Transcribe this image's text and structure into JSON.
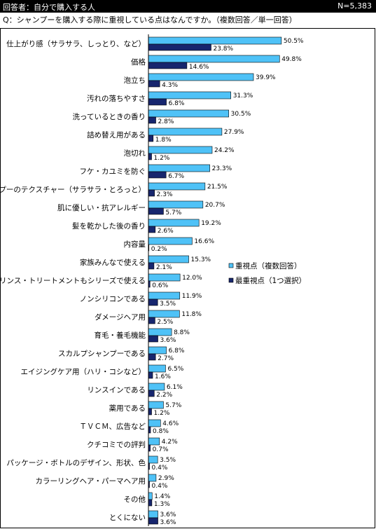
{
  "header": {
    "respondents": "回答者：自分で購入する人",
    "sample_size": "N=5,383"
  },
  "question": "Q：シャンプーを購入する際に重視している点はなんですか。（複数回答／単一回答）",
  "colors": {
    "series_a": "#4fc2f7",
    "series_b": "#17266e",
    "header_bg": "#000000"
  },
  "chart_data": {
    "type": "bar",
    "orientation": "horizontal",
    "categories": [
      "仕上がり感（サラサラ、しっとり、など）",
      "価格",
      "泡立ち",
      "汚れの落ちやすさ",
      "洗っているときの香り",
      "詰め替え用がある",
      "泡切れ",
      "フケ・カユミを防ぐ",
      "シャンプーのテクスチャー（サラサラ・とろっと）",
      "肌に優しい・抗アレルギー",
      "髪を乾かした後の香り",
      "内容量",
      "家族みんなで使える",
      "リンス・トリートメントもシリーズで使える",
      "ノンシリコンである",
      "ダメージヘア用",
      "育毛・養毛機能",
      "スカルプシャンプーである",
      "エイジングケア用（ハリ・コシなど）",
      "リンスインである",
      "薬用である",
      "ＴＶＣＭ、広告など",
      "クチコミでの評判",
      "パッケージ・ボトルのデザイン、形状、色",
      "カラーリングヘア・パーマヘア用",
      "その他",
      "とくにない"
    ],
    "series": [
      {
        "name": "重視点（複数回答）",
        "values": [
          50.5,
          49.8,
          39.9,
          31.3,
          30.5,
          27.9,
          24.2,
          23.3,
          21.5,
          20.7,
          19.2,
          16.6,
          15.3,
          12.0,
          11.9,
          11.8,
          8.8,
          6.8,
          6.5,
          6.1,
          5.7,
          4.6,
          4.2,
          3.5,
          2.9,
          1.4,
          3.6
        ],
        "labels": [
          "50.5%",
          "49.8%",
          "39.9%",
          "31.3%",
          "30.5%",
          "27.9%",
          "24.2%",
          "23.3%",
          "21.5%",
          "20.7%",
          "19.2%",
          "16.6%",
          "15.3%",
          "12.0%",
          "11.9%",
          "11.8%",
          "8.8%",
          "6.8%",
          "6.5%",
          "6.1%",
          "5.7%",
          "4.6%",
          "4.2%",
          "3.5%",
          "2.9%",
          "1.4%",
          "3.6%"
        ]
      },
      {
        "name": "最重視点（1つ選択）",
        "values": [
          23.8,
          14.6,
          4.3,
          6.8,
          2.8,
          1.8,
          1.2,
          6.7,
          2.3,
          5.7,
          2.6,
          0.2,
          2.1,
          0.6,
          3.5,
          2.5,
          3.6,
          2.7,
          1.6,
          2.2,
          1.2,
          0.8,
          0.7,
          0.4,
          0.4,
          1.3,
          3.6
        ],
        "labels": [
          "23.8%",
          "14.6%",
          "4.3%",
          "6.8%",
          "2.8%",
          "1.8%",
          "1.2%",
          "6.7%",
          "2.3%",
          "5.7%",
          "2.6%",
          "0.2%",
          "2.1%",
          "0.6%",
          "3.5%",
          "2.5%",
          "3.6%",
          "2.7%",
          "1.6%",
          "2.2%",
          "1.2%",
          "0.8%",
          "0.7%",
          "0.4%",
          "0.4%",
          "1.3%",
          "3.6%"
        ]
      }
    ],
    "xlim": [
      0,
      60
    ],
    "grid": false,
    "legend_position": "right-middle"
  }
}
